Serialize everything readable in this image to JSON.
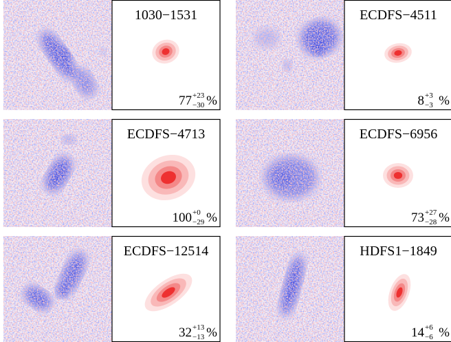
{
  "panels": [
    {
      "label": "1030−1531",
      "fraction": "77",
      "plus": "+23",
      "minus": "−30",
      "unit": "%"
    },
    {
      "label": "ECDFS−4511",
      "fraction": "8",
      "plus": "+3",
      "minus": "−3",
      "unit": "%"
    },
    {
      "label": "ECDFS−4713",
      "fraction": "100",
      "plus": "+0",
      "minus": "−29",
      "unit": "%"
    },
    {
      "label": "ECDFS−6956",
      "fraction": "73",
      "plus": "+27",
      "minus": "−28",
      "unit": "%"
    },
    {
      "label": "ECDFS−12514",
      "fraction": "32",
      "plus": "+13",
      "minus": "−13",
      "unit": "%"
    },
    {
      "label": "HDFS1−1849",
      "fraction": "14",
      "plus": "+6",
      "minus": "−6",
      "unit": "%"
    }
  ]
}
